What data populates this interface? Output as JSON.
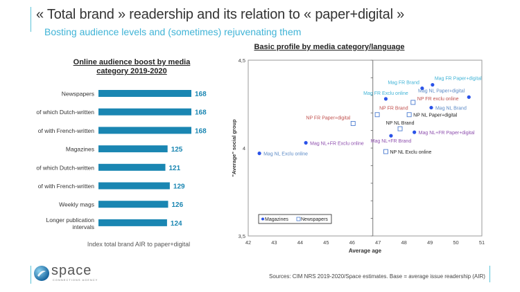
{
  "header": {
    "title": "« Total brand » readership and its relation to « paper+digital »",
    "subtitle": "Bosting audience levels and (sometimes) rejuvenating them"
  },
  "colors": {
    "accent": "#5bc3d8",
    "bar": "#1a86b2",
    "value_label": "#1a86b2",
    "magazine_marker": "#2a52e8",
    "newspaper_marker": "#4a7bd0"
  },
  "chart_data": [
    {
      "type": "bar",
      "orientation": "horizontal",
      "title": "Online audience boost by media category 2019-2020",
      "categories": [
        "Newspapers",
        "of which Dutch-written",
        "of with French-written",
        "Magazines",
        "of which Dutch-written",
        "of with French-written",
        "Weekly mags",
        "Longer publication intervals"
      ],
      "values": [
        168,
        168,
        168,
        125,
        121,
        129,
        126,
        124
      ],
      "xlabel": "Index  total brand AIR to paper+digital",
      "ylabel": "",
      "xlim": [
        0,
        168
      ]
    },
    {
      "type": "scatter",
      "title": "Basic profile by media category/language",
      "xlabel": "Average age",
      "ylabel": "\"Average\" social group",
      "xlim": [
        42,
        51
      ],
      "ylim": [
        3.5,
        4.5
      ],
      "xticks": [
        "42",
        "43",
        "44",
        "45",
        "46",
        "47",
        "48",
        "49",
        "50",
        "51"
      ],
      "yticks": [
        "3,5",
        "4",
        "4,5"
      ],
      "divider_x": 46.8,
      "legend": {
        "position": "bottom-left",
        "entries": [
          "Magazines",
          "Newspapers"
        ]
      },
      "series": [
        {
          "name": "Magazines",
          "marker": "dot",
          "points": [
            {
              "label": "Mag NL Exclu online",
              "x": 42.43,
              "y": 3.97,
              "color": "#5b8ac6",
              "pos": "right"
            },
            {
              "label": "Mag NL+FR Exclu online",
              "x": 44.22,
              "y": 4.03,
              "color": "#8e4fae",
              "pos": "right"
            },
            {
              "label": "Mag FR Exclu online",
              "x": 47.3,
              "y": 4.28,
              "color": "#3fb3d6",
              "pos": "above"
            },
            {
              "label": "Mag FR Brand",
              "x": 48.7,
              "y": 4.34,
              "color": "#3fb3d6",
              "pos": "aboveleft"
            },
            {
              "label": "Mag FR Paper+digital",
              "x": 49.1,
              "y": 4.36,
              "color": "#3fb3d6",
              "pos": "aboveright"
            },
            {
              "label": "Mag NL Paper+digital",
              "x": 50.5,
              "y": 4.29,
              "color": "#5b8ac6",
              "pos": "aboveleftfar"
            },
            {
              "label": "Mag NL Brand",
              "x": 49.05,
              "y": 4.23,
              "color": "#5b8ac6",
              "pos": "right"
            },
            {
              "label": "Mag NL+FR Paper+digital",
              "x": 48.4,
              "y": 4.09,
              "color": "#8e4fae",
              "pos": "right"
            },
            {
              "label": "Mag NL+FR Brand",
              "x": 47.5,
              "y": 4.07,
              "color": "#8e4fae",
              "pos": "below"
            }
          ]
        },
        {
          "name": "Newspapers",
          "marker": "square",
          "points": [
            {
              "label": "NP FR Paper+digital",
              "x": 46.04,
              "y": 4.14,
              "color": "#c0504d",
              "pos": "aboveleft"
            },
            {
              "label": "NP FR Brand",
              "x": 46.97,
              "y": 4.19,
              "color": "#c0504d",
              "pos": "aboveright"
            },
            {
              "label": "NP FR exclu online",
              "x": 48.35,
              "y": 4.26,
              "color": "#c0504d",
              "pos": "aboveright2"
            },
            {
              "label": "NP NL Paper+digital",
              "x": 48.2,
              "y": 4.19,
              "color": "#222222",
              "pos": "right"
            },
            {
              "label": "NP NL Brand",
              "x": 47.85,
              "y": 4.11,
              "color": "#222222",
              "pos": "above"
            },
            {
              "label": "NP NL Exclu online",
              "x": 47.3,
              "y": 3.98,
              "color": "#222222",
              "pos": "right"
            }
          ]
        }
      ]
    }
  ],
  "footer": {
    "source": "Sources: CIM NRS 2019-2020/Space estimates. Base = average issue readership (AIR)",
    "logo_word": "space",
    "logo_sub": "CONNECTIONS AGENCY"
  }
}
